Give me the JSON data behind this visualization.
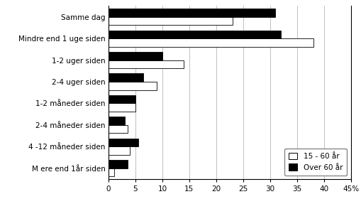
{
  "categories": [
    "Samme dag",
    "Mindre end 1 uge siden",
    "1-2 uger siden",
    "2-4 uger siden",
    "1-2 måneder siden",
    "2-4 måneder siden",
    "4 -12 måneder siden",
    "M ere end 1år siden"
  ],
  "values_white": [
    23,
    38,
    14,
    9,
    5,
    3.5,
    4,
    1
  ],
  "values_black": [
    31,
    32,
    10,
    6.5,
    5,
    3,
    5.5,
    3.5
  ],
  "color_white": "#ffffff",
  "color_black": "#000000",
  "edge_color": "#000000",
  "xlim": [
    0,
    45
  ],
  "xticks": [
    0,
    5,
    10,
    15,
    20,
    25,
    30,
    35,
    40,
    45
  ],
  "legend_labels": [
    "15 - 60 år",
    "Over 60 år"
  ],
  "bar_height": 0.38,
  "grid_color": "#c0c0c0",
  "background_color": "#ffffff",
  "label_fontsize": 7.5,
  "tick_fontsize": 7.5
}
